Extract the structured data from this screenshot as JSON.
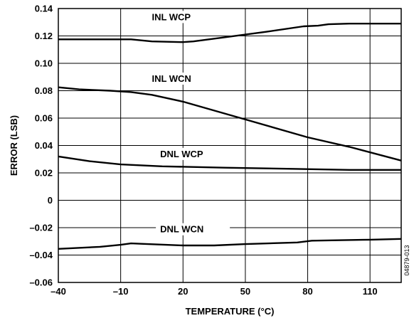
{
  "chart_data": {
    "type": "line",
    "xlabel": "TEMPERATURE (°C)",
    "ylabel": "ERROR (LSB)",
    "xlim": [
      -40,
      125
    ],
    "ylim": [
      -0.06,
      0.14
    ],
    "x_ticks": [
      -40,
      -10,
      20,
      50,
      80,
      110
    ],
    "x_tick_labels": [
      "–40",
      "–10",
      "20",
      "50",
      "80",
      "110"
    ],
    "y_ticks": [
      -0.06,
      -0.04,
      -0.02,
      0,
      0.02,
      0.04,
      0.06,
      0.08,
      0.1,
      0.12,
      0.14
    ],
    "y_tick_labels": [
      "–0.06",
      "–0.04",
      "–0.02",
      "0",
      "0.02",
      "0.04",
      "0.06",
      "0.08",
      "0.10",
      "0.12",
      "0.14"
    ],
    "grid": true,
    "figure_id": "04879-013",
    "series": [
      {
        "name": "INL WCP",
        "label_at": [
          5,
          0.1315
        ],
        "points": [
          [
            -40,
            0.1175
          ],
          [
            -5,
            0.1175
          ],
          [
            5,
            0.116
          ],
          [
            20,
            0.1155
          ],
          [
            25,
            0.116
          ],
          [
            40,
            0.119
          ],
          [
            60,
            0.123
          ],
          [
            78,
            0.127
          ],
          [
            85,
            0.1275
          ],
          [
            90,
            0.1285
          ],
          [
            100,
            0.129
          ],
          [
            125,
            0.129
          ]
        ]
      },
      {
        "name": "INL WCN",
        "label_at": [
          5,
          0.0865
        ],
        "points": [
          [
            -40,
            0.0825
          ],
          [
            -30,
            0.081
          ],
          [
            -15,
            0.08
          ],
          [
            -5,
            0.079
          ],
          [
            5,
            0.077
          ],
          [
            20,
            0.072
          ],
          [
            50,
            0.059
          ],
          [
            80,
            0.046
          ],
          [
            100,
            0.039
          ],
          [
            125,
            0.029
          ]
        ]
      },
      {
        "name": "DNL WCP",
        "label_at": [
          9,
          0.0315
        ],
        "points": [
          [
            -40,
            0.032
          ],
          [
            -25,
            0.0285
          ],
          [
            -10,
            0.0262
          ],
          [
            10,
            0.0248
          ],
          [
            40,
            0.0238
          ],
          [
            70,
            0.023
          ],
          [
            100,
            0.0222
          ],
          [
            125,
            0.0222
          ]
        ]
      },
      {
        "name": "DNL WCN",
        "label_at": [
          9,
          -0.0235
        ],
        "points": [
          [
            -40,
            -0.0355
          ],
          [
            -20,
            -0.034
          ],
          [
            -10,
            -0.0325
          ],
          [
            -5,
            -0.0315
          ],
          [
            0,
            -0.0318
          ],
          [
            20,
            -0.033
          ],
          [
            35,
            -0.033
          ],
          [
            50,
            -0.032
          ],
          [
            75,
            -0.0308
          ],
          [
            82,
            -0.0295
          ],
          [
            110,
            -0.0288
          ],
          [
            125,
            -0.0282
          ]
        ]
      }
    ]
  }
}
